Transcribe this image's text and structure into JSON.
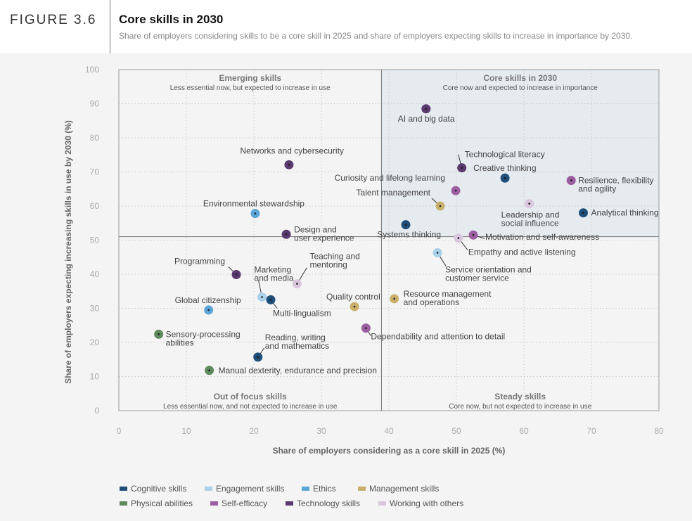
{
  "figure": {
    "label": "FIGURE 3.6",
    "title": "Core skills in 2030",
    "subtitle": "Share of employers considering skills to be a core skill in 2025 and share of employers expecting skills to increase in importance by 2030."
  },
  "chart_data": {
    "type": "scatter",
    "xlabel": "Share of employers considering as a core skill in 2025 (%)",
    "ylabel": "Share of employers expecting increasing skills in use by 2030 (%)",
    "xlim": [
      0,
      80
    ],
    "ylim": [
      0,
      100
    ],
    "xticks": [
      0,
      10,
      20,
      30,
      40,
      50,
      60,
      70,
      80
    ],
    "yticks": [
      0,
      10,
      20,
      30,
      40,
      50,
      60,
      70,
      80,
      90,
      100
    ],
    "dividers": {
      "x": 38.9,
      "y": 51
    },
    "quadrants": [
      {
        "title": "Emerging skills",
        "subtitle": "Less essential now, but expected to increase in use"
      },
      {
        "title": "Core skills in 2030",
        "subtitle": "Core now and expected to increase in importance"
      },
      {
        "title": "Out of focus skills",
        "subtitle": "Less essential now, and not expected to increase in use"
      },
      {
        "title": "Steady skills",
        "subtitle": "Core now, but not expected to increase in use"
      }
    ],
    "categories": [
      {
        "name": "Cognitive skills",
        "color": "#1f4e79"
      },
      {
        "name": "Engagement skills",
        "color": "#a9d1ea"
      },
      {
        "name": "Ethics",
        "color": "#5ba6d9"
      },
      {
        "name": "Management skills",
        "color": "#c8b06b"
      },
      {
        "name": "Physical abilities",
        "color": "#5e8a5e"
      },
      {
        "name": "Self-efficacy",
        "color": "#9b5ea1"
      },
      {
        "name": "Technology skills",
        "color": "#5a3a6e"
      },
      {
        "name": "Working with others",
        "color": "#d9c6dd"
      }
    ],
    "points": [
      {
        "label": [
          "AI and big data"
        ],
        "x": 45.5,
        "y": 88.5,
        "category": "Technology skills"
      },
      {
        "label": [
          "Technological literacy"
        ],
        "x": 50.8,
        "y": 71.2,
        "category": "Technology skills"
      },
      {
        "label": [
          "Creative thinking"
        ],
        "x": 57.2,
        "y": 68.2,
        "category": "Cognitive skills"
      },
      {
        "label": [
          "Curiosity and lifelong learning"
        ],
        "x": 49.9,
        "y": 64.5,
        "category": "Self-efficacy"
      },
      {
        "label": [
          "Resilience, flexibility",
          "and agility"
        ],
        "x": 67,
        "y": 67.5,
        "category": "Self-efficacy"
      },
      {
        "label": [
          "Talent management"
        ],
        "x": 47.6,
        "y": 60,
        "category": "Management skills"
      },
      {
        "label": [
          "Leadership and",
          "social influence"
        ],
        "x": 60.8,
        "y": 60.7,
        "category": "Working with others"
      },
      {
        "label": [
          "Analytical thinking"
        ],
        "x": 68.8,
        "y": 58,
        "category": "Cognitive skills"
      },
      {
        "label": [
          "Systems thinking"
        ],
        "x": 42.5,
        "y": 54.5,
        "category": "Cognitive skills"
      },
      {
        "label": [
          "Motivation and self-awareness"
        ],
        "x": 52.5,
        "y": 51.5,
        "category": "Self-efficacy"
      },
      {
        "label": [
          "Empathy and active listening"
        ],
        "x": 50.3,
        "y": 50.6,
        "category": "Working with others"
      },
      {
        "label": [
          "Service orientation and",
          "customer service"
        ],
        "x": 47.2,
        "y": 46.3,
        "category": "Engagement skills"
      },
      {
        "label": [
          "Networks and cybersecurity"
        ],
        "x": 25.2,
        "y": 72.1,
        "category": "Technology skills"
      },
      {
        "label": [
          "Environmental stewardship"
        ],
        "x": 20.2,
        "y": 57.8,
        "category": "Ethics"
      },
      {
        "label": [
          "Design and",
          "user experience"
        ],
        "x": 24.8,
        "y": 51.7,
        "category": "Technology skills"
      },
      {
        "label": [
          "Programming"
        ],
        "x": 17.4,
        "y": 39.9,
        "category": "Technology skills"
      },
      {
        "label": [
          "Marketing",
          "and media"
        ],
        "x": 21.2,
        "y": 33.3,
        "category": "Engagement skills"
      },
      {
        "label": [
          "Teaching and",
          "mentoring"
        ],
        "x": 26.4,
        "y": 37.2,
        "category": "Working with others"
      },
      {
        "label": [
          "Multi-lingualism"
        ],
        "x": 22.5,
        "y": 32.5,
        "category": "Cognitive skills"
      },
      {
        "label": [
          "Global citizenship"
        ],
        "x": 13.3,
        "y": 29.5,
        "category": "Ethics"
      },
      {
        "label": [
          "Quality control"
        ],
        "x": 34.9,
        "y": 30.5,
        "category": "Management skills"
      },
      {
        "label": [
          "Resource management",
          "and operations"
        ],
        "x": 40.8,
        "y": 32.8,
        "category": "Management skills"
      },
      {
        "label": [
          "Dependability and attention to detail"
        ],
        "x": 36.6,
        "y": 24.2,
        "category": "Self-efficacy"
      },
      {
        "label": [
          "Sensory-processing",
          "abilities"
        ],
        "x": 5.9,
        "y": 22.4,
        "category": "Physical abilities"
      },
      {
        "label": [
          "Reading, writing",
          "and mathematics"
        ],
        "x": 20.6,
        "y": 15.7,
        "category": "Cognitive skills"
      },
      {
        "label": [
          "Manual dexterity, endurance and precision"
        ],
        "x": 13.4,
        "y": 11.8,
        "category": "Physical abilities"
      }
    ]
  }
}
